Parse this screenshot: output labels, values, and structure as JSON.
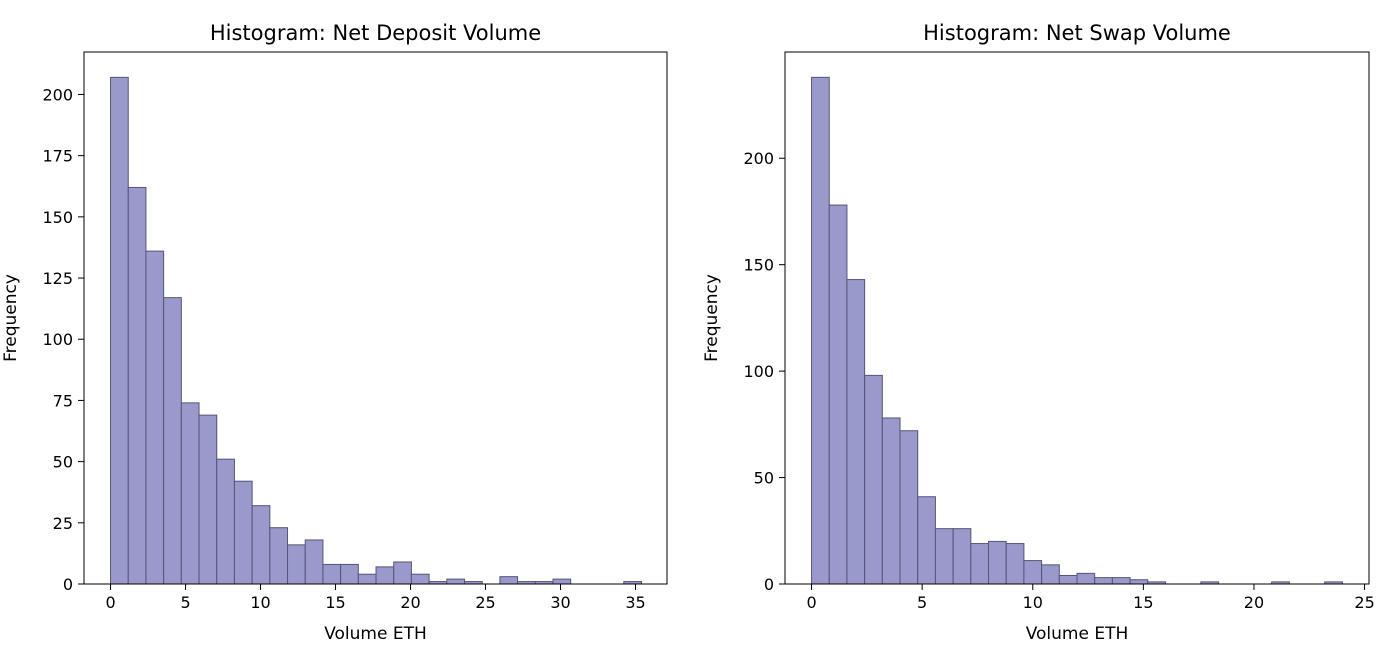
{
  "chart_data": [
    {
      "type": "bar",
      "title": "Histogram: Net Deposit Volume",
      "xlabel": "Volume ETH",
      "ylabel": "Frequency",
      "xlim": [
        -1.77,
        37.1
      ],
      "ylim": [
        0,
        217.35
      ],
      "xticks": [
        0,
        5,
        10,
        15,
        20,
        25,
        30,
        35
      ],
      "yticks": [
        0,
        25,
        50,
        75,
        100,
        125,
        150,
        175,
        200
      ],
      "bin_edges": [
        0,
        1.18,
        2.36,
        3.54,
        4.72,
        5.9,
        7.08,
        8.26,
        9.44,
        10.62,
        11.8,
        12.98,
        14.16,
        15.34,
        16.52,
        17.7,
        18.88,
        20.06,
        21.24,
        22.42,
        23.6,
        24.78,
        25.96,
        27.14,
        28.32,
        29.5,
        30.68,
        31.86,
        33.04,
        34.22,
        35.4
      ],
      "values": [
        207,
        162,
        136,
        117,
        74,
        69,
        51,
        42,
        32,
        23,
        16,
        18,
        8,
        8,
        4,
        7,
        9,
        4,
        1,
        2,
        1,
        0,
        3,
        1,
        1,
        2,
        0,
        0,
        0,
        1
      ],
      "bar_color": "#9999cc",
      "edge_color": "#555577",
      "grid": false,
      "legend": "none"
    },
    {
      "type": "bar",
      "title": "Histogram: Net Swap Volume",
      "xlabel": "Volume ETH",
      "ylabel": "Frequency",
      "xlim": [
        -1.2,
        25.2
      ],
      "ylim": [
        0,
        249.9
      ],
      "xticks": [
        0,
        5,
        10,
        15,
        20,
        25
      ],
      "yticks": [
        0,
        50,
        100,
        150,
        200
      ],
      "bin_edges": [
        0,
        0.8,
        1.6,
        2.4,
        3.2,
        4.0,
        4.8,
        5.6,
        6.4,
        7.2,
        8.0,
        8.8,
        9.6,
        10.4,
        11.2,
        12.0,
        12.8,
        13.6,
        14.4,
        15.2,
        16.0,
        16.8,
        17.6,
        18.4,
        19.2,
        20.0,
        20.8,
        21.6,
        22.4,
        23.2,
        24.0
      ],
      "values": [
        238,
        178,
        143,
        98,
        78,
        72,
        41,
        26,
        26,
        19,
        20,
        19,
        11,
        9,
        4,
        5,
        3,
        3,
        2,
        1,
        0,
        0,
        1,
        0,
        0,
        0,
        1,
        0,
        0,
        1
      ],
      "bar_color": "#9999cc",
      "edge_color": "#555577",
      "grid": false,
      "legend": "none"
    }
  ]
}
